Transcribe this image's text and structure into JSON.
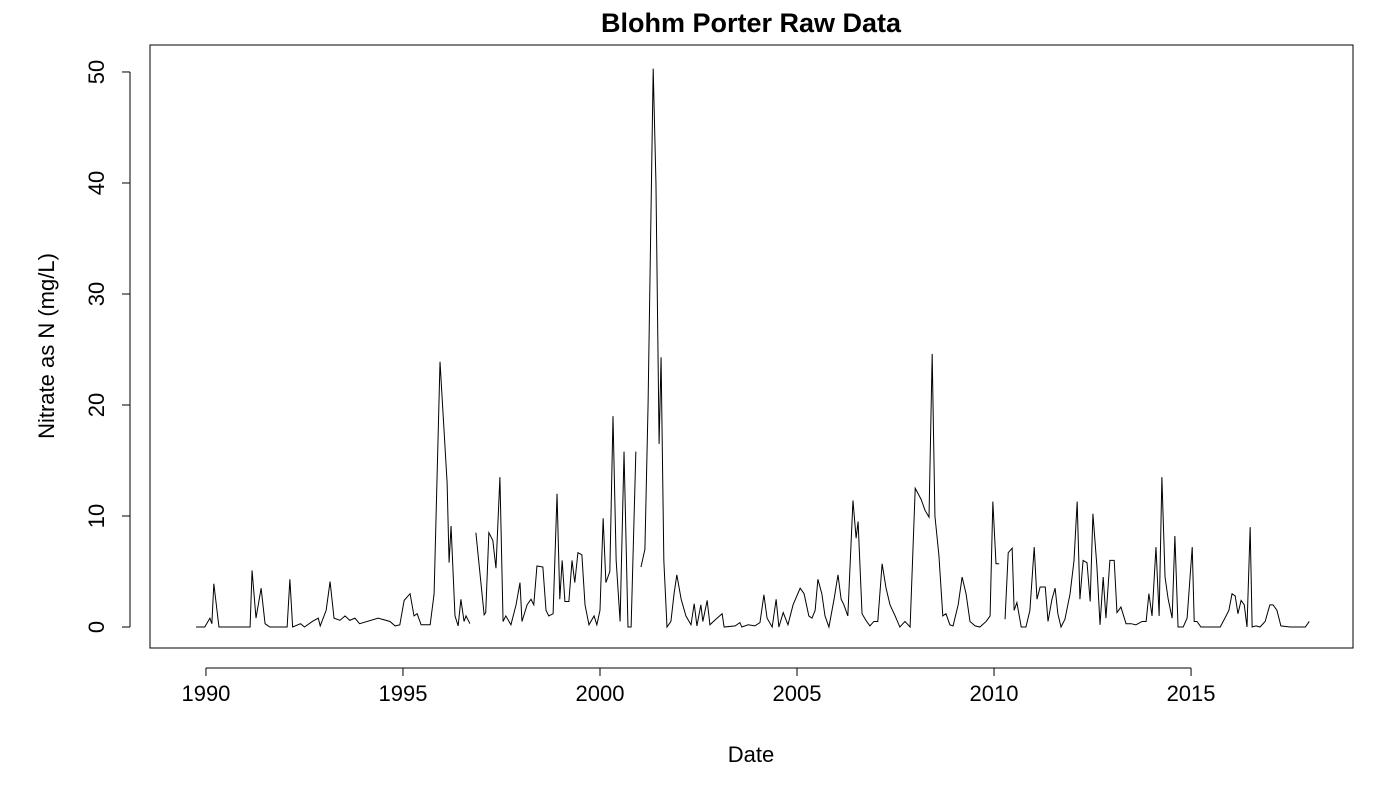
{
  "chart_data": {
    "type": "line",
    "title": "Blohm Porter Raw Data",
    "x_label": "Date",
    "y_label": "Nitrate as N (mg/L)",
    "xlim": [
      1988.58,
      2019.11
    ],
    "ylim": [
      -1.89,
      52.43
    ],
    "xticks": [
      1990,
      1995,
      2000,
      2005,
      2010,
      2015
    ],
    "yticks": [
      0,
      10,
      20,
      30,
      40,
      50
    ],
    "color": "#000000",
    "x": [
      1989.75,
      1989.97,
      1990.1,
      1990.15,
      1990.2,
      1990.33,
      1991.12,
      1991.17,
      1991.27,
      1991.4,
      1991.5,
      1991.62,
      1991.83,
      1992.06,
      1992.13,
      1992.2,
      1992.4,
      1992.5,
      1992.7,
      1992.85,
      1992.9,
      1993.05,
      1993.15,
      1993.25,
      1993.4,
      1993.53,
      1993.65,
      1993.78,
      1993.9,
      1994.37,
      1994.67,
      1994.8,
      1994.92,
      1995.03,
      1995.18,
      1995.28,
      1995.36,
      1995.46,
      1995.69,
      1995.79,
      1995.94,
      1996.12,
      1996.17,
      1996.22,
      1996.32,
      1996.4,
      1996.47,
      1996.55,
      1996.6,
      1996.7,
      1996.78,
      1996.85,
      1997.06,
      1997.1,
      1997.18,
      1997.28,
      1997.36,
      1997.46,
      1997.54,
      1997.61,
      1997.74,
      1997.87,
      1997.97,
      1998.02,
      1998.15,
      1998.25,
      1998.32,
      1998.4,
      1998.55,
      1998.63,
      1998.7,
      1998.81,
      1998.91,
      1998.98,
      1999.04,
      1999.11,
      1999.21,
      1999.29,
      1999.36,
      1999.44,
      1999.54,
      1999.62,
      1999.72,
      1999.85,
      1999.92,
      2000.0,
      2000.08,
      2000.15,
      2000.25,
      2000.33,
      2000.41,
      2000.51,
      2000.61,
      2000.71,
      2000.79,
      2000.91,
      2000.98,
      2001.04,
      2001.14,
      2001.22,
      2001.35,
      2001.42,
      2001.5,
      2001.55,
      2001.62,
      2001.7,
      2001.8,
      2001.88,
      2001.95,
      2002.06,
      2002.18,
      2002.31,
      2002.39,
      2002.46,
      2002.56,
      2002.61,
      2002.72,
      2002.79,
      2002.94,
      2003.1,
      2003.15,
      2003.43,
      2003.55,
      2003.6,
      2003.76,
      2003.93,
      2004.06,
      2004.16,
      2004.24,
      2004.37,
      2004.47,
      2004.54,
      2004.65,
      2004.77,
      2004.9,
      2005.08,
      2005.18,
      2005.3,
      2005.38,
      2005.46,
      2005.53,
      2005.63,
      2005.71,
      2005.81,
      2005.94,
      2006.04,
      2006.12,
      2006.19,
      2006.29,
      2006.42,
      2006.5,
      2006.55,
      2006.65,
      2006.75,
      2006.85,
      2006.95,
      2007.05,
      2007.16,
      2007.26,
      2007.36,
      2007.49,
      2007.61,
      2007.74,
      2007.87,
      2008.0,
      2008.15,
      2008.25,
      2008.35,
      2008.43,
      2008.5,
      2008.6,
      2008.7,
      2008.78,
      2008.88,
      2008.96,
      2009.09,
      2009.19,
      2009.29,
      2009.39,
      2009.52,
      2009.64,
      2009.8,
      2009.9,
      2009.97,
      2010.05,
      2010.13,
      2010.2,
      2010.28,
      2010.36,
      2010.46,
      2010.51,
      2010.58,
      2010.69,
      2010.81,
      2010.91,
      2011.02,
      2011.09,
      2011.17,
      2011.3,
      2011.37,
      2011.47,
      2011.55,
      2011.62,
      2011.7,
      2011.8,
      2011.93,
      2012.03,
      2012.11,
      2012.18,
      2012.26,
      2012.36,
      2012.44,
      2012.51,
      2012.61,
      2012.69,
      2012.77,
      2012.84,
      2012.94,
      2013.05,
      2013.12,
      2013.22,
      2013.35,
      2013.48,
      2013.6,
      2013.76,
      2013.86,
      2013.93,
      2014.01,
      2014.11,
      2014.19,
      2014.26,
      2014.34,
      2014.42,
      2014.52,
      2014.59,
      2014.67,
      2014.8,
      2014.9,
      2015.03,
      2015.08,
      2015.15,
      2015.25,
      2015.38,
      2015.48,
      2015.61,
      2015.74,
      2015.86,
      2015.96,
      2016.04,
      2016.12,
      2016.19,
      2016.27,
      2016.35,
      2016.42,
      2016.5,
      2016.55,
      2016.65,
      2016.75,
      2016.88,
      2017.0,
      2017.08,
      2017.18,
      2017.28,
      2017.51,
      2017.77,
      2017.9,
      2018.0
    ],
    "values": [
      0,
      0,
      0.8,
      0.3,
      3.9,
      0,
      0,
      5.1,
      0.8,
      3.5,
      0.3,
      0,
      0,
      0,
      4.3,
      0,
      0.3,
      0,
      0.5,
      0.8,
      0.1,
      1.5,
      4.1,
      0.8,
      0.6,
      1.0,
      0.6,
      0.8,
      0.3,
      0.8,
      0.5,
      0.1,
      0.2,
      2.4,
      3.0,
      1.0,
      1.2,
      0.2,
      0.2,
      3.0,
      23.9,
      13,
      5.8,
      9.1,
      1.0,
      0.1,
      2.5,
      0.5,
      1.0,
      0.3,
      null,
      8.5,
      1.1,
      1.3,
      8.5,
      7.8,
      5.3,
      13.5,
      0.5,
      1.0,
      0.2,
      2.0,
      4.0,
      0.5,
      2.0,
      2.5,
      2.0,
      5.5,
      5.4,
      1.5,
      1.0,
      1.2,
      12.0,
      2.5,
      6.0,
      2.3,
      2.3,
      6.0,
      4.0,
      6.7,
      6.5,
      2.0,
      0.2,
      1.0,
      0.2,
      1.5,
      9.8,
      4.0,
      5.0,
      19.0,
      6.0,
      0.5,
      15.8,
      0,
      0,
      15.8,
      null,
      5.4,
      7.0,
      20,
      50.3,
      40,
      16.5,
      24.3,
      6,
      0,
      0.5,
      3.0,
      4.7,
      2.5,
      1.0,
      0.2,
      2.1,
      0.1,
      2.0,
      0.5,
      2.4,
      0.2,
      0.7,
      1.2,
      0,
      0.1,
      0.4,
      0,
      0.2,
      0.1,
      0.4,
      2.9,
      0.8,
      0,
      2.5,
      0,
      1.3,
      0.2,
      2.0,
      3.5,
      3.0,
      1.0,
      0.8,
      1.5,
      4.3,
      3.0,
      1.0,
      0,
      2.5,
      4.7,
      2.5,
      2.0,
      1.0,
      11.4,
      8.0,
      9.5,
      1.2,
      0.6,
      0.1,
      0.5,
      0.5,
      5.7,
      3.5,
      2.0,
      1.0,
      0,
      0.5,
      0,
      12.5,
      11.5,
      10.5,
      9.9,
      24.6,
      10,
      6.5,
      1.0,
      1.2,
      0.2,
      0.1,
      2.0,
      4.5,
      3.0,
      0.5,
      0.1,
      0,
      0.5,
      1.0,
      11.3,
      5.7,
      5.7,
      null,
      0.7,
      6.7,
      7.1,
      1.5,
      2.2,
      0,
      0,
      1.5,
      7.2,
      2.5,
      3.6,
      3.6,
      0.5,
      2.5,
      3.5,
      1.2,
      0,
      0.7,
      3.0,
      6.0,
      11.3,
      2.5,
      6.0,
      5.8,
      2.3,
      10.2,
      5.5,
      0.2,
      4.5,
      0.8,
      6.0,
      6.0,
      1.3,
      1.8,
      0.3,
      0.3,
      0.2,
      0.5,
      0.5,
      3.0,
      1.0,
      7.2,
      1.0,
      13.5,
      4.5,
      2.5,
      0.8,
      8.2,
      0,
      0,
      0.8,
      7.2,
      0.5,
      0.5,
      0,
      0,
      0,
      0,
      0,
      0.8,
      1.5,
      3.0,
      2.8,
      1.2,
      2.4,
      2.0,
      0,
      9.0,
      0,
      0.1,
      0,
      0.5,
      2.0,
      2.0,
      1.5,
      0.1,
      0,
      0,
      0,
      0.5
    ]
  }
}
